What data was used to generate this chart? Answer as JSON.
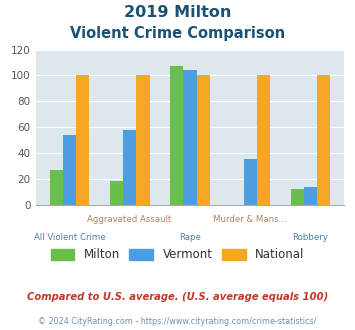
{
  "title_line1": "2019 Milton",
  "title_line2": "Violent Crime Comparison",
  "top_labels": [
    "",
    "Aggravated Assault",
    "",
    "Murder & Mans...",
    ""
  ],
  "bottom_labels": [
    "All Violent Crime",
    "",
    "Rape",
    "",
    "Robbery"
  ],
  "milton": [
    27,
    18,
    107,
    0,
    12
  ],
  "vermont": [
    54,
    58,
    104,
    35,
    14
  ],
  "national": [
    100,
    100,
    100,
    100,
    100
  ],
  "milton_color": "#6abf4b",
  "vermont_color": "#4d9de0",
  "national_color": "#f5a623",
  "ylim": [
    0,
    120
  ],
  "yticks": [
    0,
    20,
    40,
    60,
    80,
    100,
    120
  ],
  "bg_color": "#dde8ec",
  "title_color": "#1a5276",
  "xlabel_top_color": "#b08060",
  "xlabel_bottom_color": "#5080a0",
  "footnote": "Compared to U.S. average. (U.S. average equals 100)",
  "copyright": "© 2024 CityRating.com - https://www.cityrating.com/crime-statistics/",
  "legend_labels": [
    "Milton",
    "Vermont",
    "National"
  ]
}
